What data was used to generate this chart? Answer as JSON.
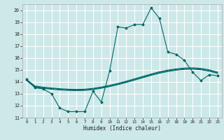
{
  "xlabel": "Humidex (Indice chaleur)",
  "xlim": [
    -0.5,
    23.5
  ],
  "ylim": [
    11,
    20.5
  ],
  "yticks": [
    11,
    12,
    13,
    14,
    15,
    16,
    17,
    18,
    19,
    20
  ],
  "xticks": [
    0,
    1,
    2,
    3,
    4,
    5,
    6,
    7,
    8,
    9,
    10,
    11,
    12,
    13,
    14,
    15,
    16,
    17,
    18,
    19,
    20,
    21,
    22,
    23
  ],
  "background_color": "#cce8e8",
  "grid_color": "#ffffff",
  "line_color": "#006666",
  "hours": [
    0,
    1,
    2,
    3,
    4,
    5,
    6,
    7,
    8,
    9,
    10,
    11,
    12,
    13,
    14,
    15,
    16,
    17,
    18,
    19,
    20,
    21,
    22,
    23
  ],
  "line1": [
    14.2,
    13.5,
    13.4,
    13.0,
    11.8,
    11.5,
    11.5,
    11.5,
    13.2,
    12.3,
    14.9,
    18.6,
    18.5,
    18.8,
    18.8,
    20.2,
    19.3,
    16.5,
    16.3,
    15.8,
    14.8,
    14.1,
    14.6,
    14.5
  ],
  "line2": [
    14.1,
    13.55,
    13.45,
    13.38,
    13.32,
    13.28,
    13.26,
    13.28,
    13.35,
    13.46,
    13.6,
    13.76,
    13.94,
    14.14,
    14.34,
    14.54,
    14.72,
    14.86,
    14.97,
    15.04,
    15.06,
    15.01,
    14.89,
    14.7
  ],
  "line3": [
    14.15,
    13.6,
    13.5,
    13.43,
    13.37,
    13.33,
    13.31,
    13.33,
    13.4,
    13.51,
    13.65,
    13.81,
    13.99,
    14.19,
    14.4,
    14.6,
    14.78,
    14.92,
    15.02,
    15.09,
    15.11,
    15.06,
    14.94,
    14.75
  ],
  "line4": [
    14.2,
    13.65,
    13.55,
    13.48,
    13.42,
    13.38,
    13.36,
    13.38,
    13.45,
    13.56,
    13.7,
    13.87,
    14.05,
    14.25,
    14.45,
    14.65,
    14.84,
    14.98,
    15.08,
    15.15,
    15.17,
    15.12,
    15.0,
    14.81
  ]
}
